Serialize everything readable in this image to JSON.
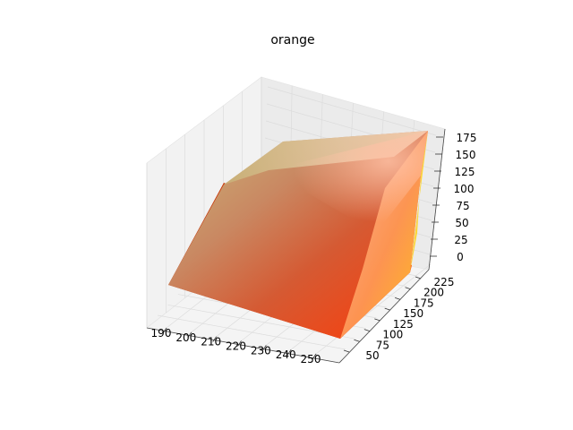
{
  "chart_data": {
    "type": "surface",
    "projection": "3d",
    "title": "orange",
    "xlabel": "",
    "ylabel": "",
    "zlabel": "",
    "grid": true,
    "x_ticks": [
      190,
      200,
      210,
      220,
      230,
      240,
      250
    ],
    "y_ticks": [
      50,
      75,
      100,
      125,
      150,
      175,
      200,
      225
    ],
    "z_ticks": [
      0,
      25,
      50,
      75,
      100,
      125,
      150,
      175
    ],
    "xlim": [
      185,
      256
    ],
    "ylim": [
      40,
      235
    ],
    "zlim": [
      -10,
      185
    ],
    "surface_corners": {
      "description_values": "approximate data-space corners of the colored solid",
      "points": [
        {
          "x": 186,
          "y": 60,
          "z": 0
        },
        {
          "x": 255,
          "y": 60,
          "z": 0
        },
        {
          "x": 255,
          "y": 228,
          "z": 0
        },
        {
          "x": 190,
          "y": 228,
          "z": 130
        },
        {
          "x": 190,
          "y": 228,
          "z": 175
        },
        {
          "x": 255,
          "y": 228,
          "z": 175
        },
        {
          "x": 186,
          "y": 60,
          "z": 100
        }
      ]
    },
    "colors": {
      "dark_red": "#b83300",
      "bright_red": "#ff3300",
      "gold": "#ffd21a",
      "peach": "#ffc8a0",
      "khaki": "#c8b878",
      "cream": "#fff0d0",
      "pane": "#f2f2f2",
      "grid": "#d9d9d9"
    }
  }
}
